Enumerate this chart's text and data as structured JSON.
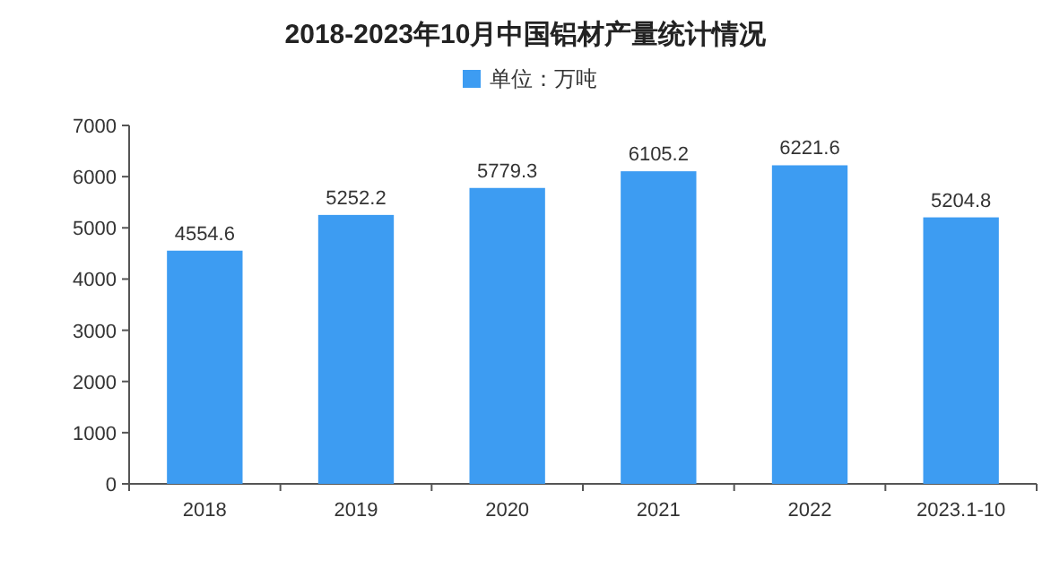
{
  "chart_data": {
    "type": "bar",
    "title": "2018-2023年10月中国铝材产量统计情况",
    "categories": [
      "2018",
      "2019",
      "2020",
      "2021",
      "2022",
      "2023.1-10"
    ],
    "series": [
      {
        "name": "单位：万吨",
        "color": "#3d9cf2",
        "values": [
          4554.6,
          5252.2,
          5779.3,
          6105.2,
          6221.6,
          5204.8
        ]
      }
    ],
    "ylim": [
      0,
      7000
    ],
    "yticks": [
      0,
      1000,
      2000,
      3000,
      4000,
      5000,
      6000,
      7000
    ],
    "data_labels": true,
    "legend": "top",
    "grid": false
  }
}
